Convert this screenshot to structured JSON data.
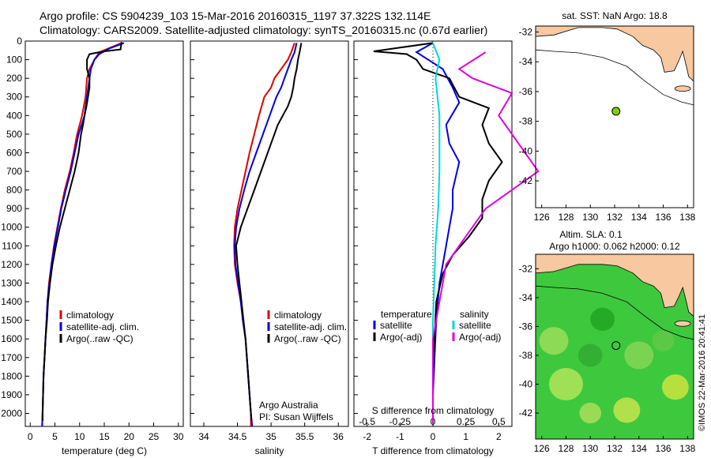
{
  "header": {
    "line1": "Argo profile: CS 5904239_103 15-Mar-2016 20160315_1197 37.322S 132.114E",
    "line2": "Climatology: CARS2009. Satellite-adjusted climatology: synTS_20160315.nc (0.67d earlier)"
  },
  "colors": {
    "climatology": "#e00000",
    "satellite": "#0000e0",
    "argo": "#000000",
    "sal_satellite": "#00d8d8",
    "sal_argo": "#e000e0",
    "land": "#f8c8a0",
    "float_marker": "#80d000"
  },
  "chart_data": [
    {
      "type": "line",
      "panel": "temperature",
      "xlabel": "temperature (deg C)",
      "ylabel": "",
      "xlim": [
        -1,
        31
      ],
      "ylim": [
        2070,
        0
      ],
      "xticks": [
        0,
        5,
        10,
        15,
        20,
        25,
        30
      ],
      "yticks": [
        0,
        100,
        200,
        300,
        400,
        500,
        600,
        700,
        800,
        900,
        1000,
        1100,
        1200,
        1300,
        1400,
        1500,
        1600,
        1700,
        1800,
        1900,
        2000
      ],
      "series": [
        {
          "name": "climatology",
          "color_key": "climatology",
          "points": [
            [
              18.5,
              10
            ],
            [
              14,
              60
            ],
            [
              13,
              100
            ],
            [
              12,
              150
            ],
            [
              11.5,
              200
            ],
            [
              11.2,
              300
            ],
            [
              10.5,
              400
            ],
            [
              10,
              450
            ],
            [
              9.5,
              500
            ],
            [
              8.8,
              600
            ],
            [
              8,
              700
            ],
            [
              7,
              800
            ],
            [
              6.2,
              900
            ],
            [
              5.5,
              1000
            ],
            [
              4.8,
              1100
            ],
            [
              4.3,
              1200
            ],
            [
              3.8,
              1300
            ],
            [
              3.5,
              1400
            ],
            [
              3.3,
              1500
            ],
            [
              3.1,
              1600
            ],
            [
              2.9,
              1700
            ],
            [
              2.7,
              1800
            ],
            [
              2.6,
              1900
            ],
            [
              2.5,
              2000
            ],
            [
              2.4,
              2070
            ]
          ]
        },
        {
          "name": "satellite-adj. clim.",
          "color_key": "satellite",
          "points": [
            [
              19,
              10
            ],
            [
              16,
              40
            ],
            [
              14,
              70
            ],
            [
              13,
              100
            ],
            [
              12.3,
              150
            ],
            [
              12,
              200
            ],
            [
              11.5,
              300
            ],
            [
              11,
              400
            ],
            [
              10.4,
              450
            ],
            [
              9.8,
              500
            ],
            [
              9,
              600
            ],
            [
              8.2,
              700
            ],
            [
              7.2,
              800
            ],
            [
              6.3,
              900
            ],
            [
              5.6,
              1000
            ],
            [
              4.9,
              1100
            ],
            [
              4.3,
              1200
            ],
            [
              3.9,
              1300
            ],
            [
              3.5,
              1400
            ],
            [
              3.3,
              1500
            ],
            [
              3.1,
              1600
            ],
            [
              2.9,
              1700
            ],
            [
              2.7,
              1800
            ],
            [
              2.6,
              1900
            ],
            [
              2.5,
              2000
            ],
            [
              2.4,
              2070
            ]
          ]
        },
        {
          "name": "Argo(..raw -QC)",
          "color_key": "argo",
          "points": [
            [
              18.5,
              5
            ],
            [
              18.3,
              45
            ],
            [
              15,
              55
            ],
            [
              14,
              60
            ],
            [
              12,
              70
            ],
            [
              11.5,
              100
            ],
            [
              11.5,
              150
            ],
            [
              12,
              200
            ],
            [
              12,
              250
            ],
            [
              11.7,
              300
            ],
            [
              11.4,
              350
            ],
            [
              11,
              400
            ],
            [
              10.7,
              450
            ],
            [
              10.3,
              500
            ],
            [
              9.8,
              600
            ],
            [
              9,
              700
            ],
            [
              8,
              800
            ],
            [
              7,
              900
            ],
            [
              6,
              1000
            ],
            [
              5.2,
              1100
            ],
            [
              4.5,
              1200
            ],
            [
              4,
              1300
            ],
            [
              3.6,
              1400
            ],
            [
              3.4,
              1500
            ],
            [
              3.1,
              1600
            ],
            [
              2.9,
              1700
            ],
            [
              2.7,
              1800
            ],
            [
              2.6,
              1900
            ],
            [
              2.5,
              2000
            ],
            [
              2.5,
              2040
            ]
          ]
        }
      ]
    },
    {
      "type": "line",
      "panel": "salinity",
      "xlabel": "salinity",
      "ylabel": "",
      "xlim": [
        33.8,
        36.15
      ],
      "ylim": [
        2070,
        0
      ],
      "xticks": [
        34,
        34.5,
        35,
        35.5,
        36
      ],
      "series": [
        {
          "name": "climatology",
          "color_key": "climatology",
          "points": [
            [
              35.35,
              10
            ],
            [
              35.3,
              60
            ],
            [
              35.25,
              100
            ],
            [
              35.15,
              150
            ],
            [
              35.05,
              200
            ],
            [
              35.0,
              250
            ],
            [
              34.9,
              300
            ],
            [
              34.82,
              400
            ],
            [
              34.75,
              500
            ],
            [
              34.68,
              600
            ],
            [
              34.62,
              700
            ],
            [
              34.56,
              800
            ],
            [
              34.5,
              900
            ],
            [
              34.46,
              1000
            ],
            [
              34.45,
              1100
            ],
            [
              34.46,
              1200
            ],
            [
              34.5,
              1300
            ],
            [
              34.55,
              1400
            ],
            [
              34.58,
              1500
            ],
            [
              34.62,
              1600
            ],
            [
              34.64,
              1700
            ],
            [
              34.66,
              1800
            ],
            [
              34.68,
              1900
            ],
            [
              34.7,
              2000
            ],
            [
              34.7,
              2070
            ]
          ]
        },
        {
          "name": "satellite-adj. clim.",
          "color_key": "satellite",
          "points": [
            [
              35.38,
              10
            ],
            [
              35.35,
              60
            ],
            [
              35.3,
              100
            ],
            [
              35.25,
              150
            ],
            [
              35.2,
              200
            ],
            [
              35.15,
              250
            ],
            [
              35.08,
              300
            ],
            [
              34.98,
              400
            ],
            [
              34.88,
              500
            ],
            [
              34.78,
              600
            ],
            [
              34.68,
              700
            ],
            [
              34.6,
              800
            ],
            [
              34.53,
              900
            ],
            [
              34.48,
              1000
            ],
            [
              34.46,
              1100
            ],
            [
              34.47,
              1200
            ],
            [
              34.51,
              1300
            ],
            [
              34.55,
              1400
            ],
            [
              34.58,
              1500
            ],
            [
              34.62,
              1600
            ],
            [
              34.64,
              1700
            ],
            [
              34.66,
              1800
            ],
            [
              34.68,
              1900
            ],
            [
              34.7,
              2000
            ],
            [
              34.72,
              2070
            ]
          ]
        },
        {
          "name": "Argo(..raw -QC)",
          "color_key": "argo",
          "points": [
            [
              35.45,
              10
            ],
            [
              35.43,
              50
            ],
            [
              35.4,
              100
            ],
            [
              35.38,
              150
            ],
            [
              35.35,
              200
            ],
            [
              35.33,
              250
            ],
            [
              35.3,
              300
            ],
            [
              35.25,
              350
            ],
            [
              35.1,
              450
            ],
            [
              35.05,
              500
            ],
            [
              35.0,
              550
            ],
            [
              34.95,
              600
            ],
            [
              34.85,
              700
            ],
            [
              34.75,
              800
            ],
            [
              34.65,
              900
            ],
            [
              34.55,
              1000
            ],
            [
              34.48,
              1100
            ],
            [
              34.5,
              1200
            ],
            [
              34.53,
              1300
            ],
            [
              34.56,
              1400
            ],
            [
              34.59,
              1500
            ],
            [
              34.62,
              1600
            ],
            [
              34.64,
              1700
            ],
            [
              34.66,
              1800
            ],
            [
              34.68,
              1900
            ],
            [
              34.7,
              2000
            ],
            [
              34.71,
              2040
            ]
          ]
        }
      ]
    },
    {
      "type": "line",
      "panel": "difference",
      "xlabel": "T difference from climatology",
      "x2label": "S difference from climatology",
      "xlim": [
        -2.4,
        2.4
      ],
      "ylim": [
        2070,
        0
      ],
      "xticks": [
        -2,
        -1,
        0,
        1,
        2
      ],
      "x2ticks": [
        -0.5,
        -0.25,
        0,
        0.25,
        0.5
      ],
      "legend_temperature_title": "temperature",
      "legend_salinity_title": "salinity",
      "series": [
        {
          "name": "satellite",
          "group": "temperature",
          "color_key": "satellite",
          "points": [
            [
              0,
              10
            ],
            [
              -0.5,
              60
            ],
            [
              0.3,
              150
            ],
            [
              0.6,
              250
            ],
            [
              0.8,
              330
            ],
            [
              0.4,
              450
            ],
            [
              0.5,
              550
            ],
            [
              0.8,
              650
            ],
            [
              0.6,
              800
            ],
            [
              0.6,
              900
            ],
            [
              0.5,
              1000
            ],
            [
              0.4,
              1100
            ],
            [
              0.3,
              1200
            ],
            [
              0.2,
              1300
            ],
            [
              0.1,
              1500
            ],
            [
              0.05,
              1700
            ],
            [
              0,
              1900
            ],
            [
              0,
              2050
            ]
          ]
        },
        {
          "name": "Argo(-adj)",
          "group": "temperature",
          "color_key": "argo",
          "points": [
            [
              0,
              10
            ],
            [
              -1.8,
              55
            ],
            [
              -0.8,
              70
            ],
            [
              -0.5,
              100
            ],
            [
              -0.3,
              150
            ],
            [
              0.5,
              200
            ],
            [
              0.8,
              300
            ],
            [
              1.7,
              360
            ],
            [
              1.5,
              450
            ],
            [
              1.7,
              550
            ],
            [
              2.1,
              650
            ],
            [
              1.7,
              750
            ],
            [
              1.5,
              850
            ],
            [
              1.5,
              950
            ],
            [
              1.1,
              1050
            ],
            [
              0.6,
              1150
            ],
            [
              0.3,
              1250
            ],
            [
              0.1,
              1400
            ],
            [
              0.05,
              1600
            ],
            [
              0,
              1800
            ],
            [
              0,
              2050
            ]
          ]
        },
        {
          "name": "satellite",
          "group": "salinity",
          "color_key": "sal_satellite",
          "points": [
            [
              0,
              10
            ],
            [
              0.05,
              100
            ],
            [
              0.02,
              200
            ],
            [
              0.05,
              400
            ],
            [
              0.05,
              700
            ],
            [
              0.04,
              900
            ],
            [
              0.02,
              1100
            ],
            [
              0.01,
              1300
            ],
            [
              0,
              1500
            ],
            [
              0,
              1800
            ],
            [
              0,
              2050
            ]
          ]
        },
        {
          "name": "Argo(-adj)",
          "group": "salinity",
          "color_key": "sal_argo",
          "points": [
            [
              0.4,
              60
            ],
            [
              0.2,
              150
            ],
            [
              0.3,
              200
            ],
            [
              0.6,
              280
            ],
            [
              0.5,
              400
            ],
            [
              0.7,
              600
            ],
            [
              0.8,
              700
            ],
            [
              0.6,
              800
            ],
            [
              0.4,
              900
            ],
            [
              0.3,
              1000
            ],
            [
              0.2,
              1100
            ],
            [
              0.1,
              1200
            ],
            [
              0.05,
              1400
            ],
            [
              0,
              1600
            ],
            [
              0,
              2050
            ]
          ]
        }
      ]
    },
    {
      "type": "map",
      "panel": "sst_map",
      "title": "sat. SST: NaN  Argo: 18.8",
      "xlim": [
        125.5,
        138.5
      ],
      "ylim": [
        -43.8,
        -31.6
      ],
      "xticks": [
        126,
        128,
        130,
        132,
        134,
        136,
        138
      ],
      "yticks": [
        -32,
        -34,
        -36,
        -38,
        -40,
        -42
      ],
      "float_position": [
        132.114,
        -37.322
      ]
    },
    {
      "type": "map",
      "panel": "sla_map",
      "title_line1": "Altim. SLA: 0.1",
      "title_line2": "Argo h1000: 0.062  h2000: 0.12",
      "xlim": [
        125.5,
        138.5
      ],
      "ylim": [
        -43.8,
        -31.0
      ],
      "xticks": [
        126,
        128,
        130,
        132,
        134,
        136,
        138
      ],
      "yticks": [
        -32,
        -34,
        -36,
        -38,
        -40,
        -42
      ],
      "float_position": [
        132.114,
        -37.322
      ]
    }
  ],
  "legend_labels": {
    "climatology": "climatology",
    "satellite_adj": "satellite-adj. clim.",
    "argo_raw": "Argo(..raw -QC)",
    "diff_satellite": "satellite",
    "diff_argo": "Argo(-adj)"
  },
  "annotations": {
    "argo_australia": "Argo Australia",
    "pi": "PI: Susan Wijffels",
    "imos_stamp": "©IMOS 22-Mar-2016 20:41:41"
  }
}
